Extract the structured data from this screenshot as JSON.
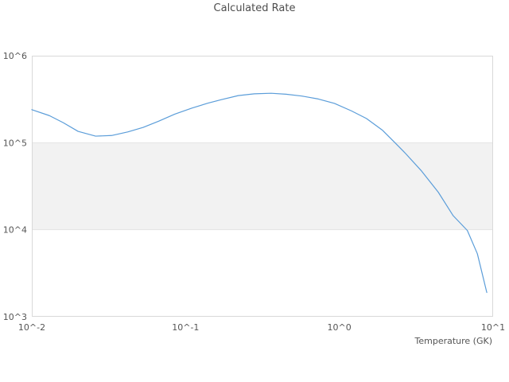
{
  "chart_data": {
    "type": "line",
    "title": "Calculated Rate",
    "xlabel": "Temperature (GK)",
    "ylabel": "",
    "x_scale": "log",
    "y_scale": "log",
    "xlim": [
      0.01,
      10
    ],
    "ylim": [
      1000,
      1000000
    ],
    "grid": "off",
    "legend": "none",
    "x_ticks": [
      {
        "value": 0.01,
        "label": "10^-2"
      },
      {
        "value": 0.1,
        "label": "10^-1"
      },
      {
        "value": 1,
        "label": "10^0"
      },
      {
        "value": 10,
        "label": "10^1"
      }
    ],
    "y_ticks": [
      {
        "value": 1000000,
        "label": "10^6"
      },
      {
        "value": 100000,
        "label": "10^5"
      },
      {
        "value": 10000,
        "label": "10^4"
      },
      {
        "value": 1000,
        "label": "10^3"
      }
    ],
    "highlight_band": {
      "y_from": 10000,
      "y_to": 100000
    },
    "colors": {
      "line": "#5b9dd9",
      "band_fill": "#f2f2f2",
      "band_edge": "#e3e3e3",
      "plot_border": "#d9d9d9",
      "text": "#555555"
    },
    "series": [
      {
        "name": "calculated-rate",
        "x": [
          0.01,
          0.013,
          0.016,
          0.02,
          0.026,
          0.033,
          0.042,
          0.053,
          0.067,
          0.085,
          0.11,
          0.14,
          0.17,
          0.22,
          0.28,
          0.36,
          0.45,
          0.57,
          0.73,
          0.93,
          1.2,
          1.5,
          1.9,
          2.3,
          2.7,
          3.4,
          4.4,
          5.5,
          6.8,
          7.9,
          9.1
        ],
        "y": [
          240000,
          205000,
          170000,
          135000,
          119000,
          121000,
          133000,
          150000,
          177000,
          213000,
          250000,
          285000,
          312000,
          348000,
          365000,
          370000,
          361000,
          344000,
          318000,
          283000,
          232000,
          190000,
          140000,
          100000,
          75000,
          48000,
          27000,
          14500,
          9800,
          5300,
          1900
        ]
      }
    ]
  }
}
